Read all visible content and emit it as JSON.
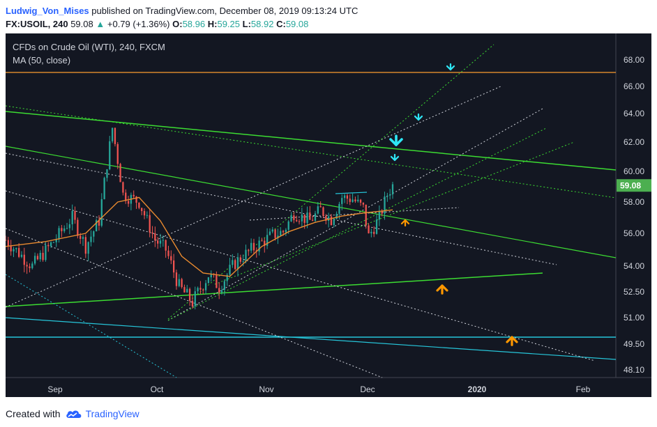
{
  "header": {
    "author": "Ludwig_Von_Mises",
    "published": "published on TradingView.com, December 08, 2019 09:13:24 UTC",
    "symbol": "FX:USOIL, 240",
    "last": "59.08",
    "change_icon": "triangle-up-icon",
    "change": "+0.79 (+1.36%)",
    "o_label": "O:",
    "o": "58.96",
    "h_label": "H:",
    "h": "59.25",
    "l_label": "L:",
    "l": "58.92",
    "c_label": "C:",
    "c": "59.08"
  },
  "legend": {
    "title": "CFDs on Crude Oil (WTI), 240, FXCM",
    "indicator": "MA (50, close)"
  },
  "footer": {
    "created": "Created with",
    "brand": "TradingView",
    "logo_icon": "tradingview-cloud-icon"
  },
  "colors": {
    "background": "#131722",
    "up": "#26a69a",
    "down": "#ef5350",
    "ma": "#e98a2f",
    "horizontal_line": "#d4852c",
    "trend_green": "#3cdc32",
    "trend_white": "#d1d4dc",
    "trend_cyan": "#26c6da",
    "arrow_cyan": "#2ee6f5",
    "arrow_orange": "#ff9800",
    "last_price_tag": "#4caf50"
  },
  "chart_data": {
    "type": "candlestick",
    "timeframe": "240",
    "x_axis_ticks": [
      "Sep",
      "Oct",
      "Nov",
      "Dec",
      "2020",
      "Feb"
    ],
    "y_axis_ticks": [
      "48.10",
      "49.50",
      "51.00",
      "52.50",
      "54.00",
      "56.00",
      "58.00",
      "60.00",
      "62.00",
      "64.00",
      "66.00",
      "68.00"
    ],
    "ylim": [
      47.5,
      69.5
    ],
    "last_price": "59.08",
    "horizontal_lines": [
      67.0,
      49.9
    ],
    "price_path": [
      [
        0,
        55.6
      ],
      [
        10,
        54.0
      ],
      [
        18,
        55.5
      ],
      [
        25,
        57.0
      ],
      [
        30,
        55.2
      ],
      [
        35,
        56.8
      ],
      [
        40,
        63.0
      ],
      [
        44,
        58.5
      ],
      [
        50,
        58.0
      ],
      [
        56,
        55.6
      ],
      [
        60,
        55.0
      ],
      [
        65,
        52.8
      ],
      [
        70,
        51.9
      ],
      [
        76,
        53.5
      ],
      [
        80,
        52.8
      ],
      [
        86,
        54.2
      ],
      [
        92,
        55.0
      ],
      [
        100,
        55.9
      ],
      [
        104,
        56.1
      ],
      [
        108,
        57.3
      ],
      [
        114,
        56.8
      ],
      [
        118,
        57.5
      ],
      [
        122,
        56.9
      ],
      [
        126,
        58.3
      ],
      [
        130,
        58.2
      ],
      [
        134,
        57.6
      ],
      [
        136,
        55.8
      ],
      [
        140,
        57.0
      ],
      [
        143,
        58.5
      ],
      [
        145,
        59.08
      ]
    ],
    "moving_average": {
      "name": "MA (50, close)",
      "points": [
        [
          0,
          55.2
        ],
        [
          15,
          55.5
        ],
        [
          30,
          56.0
        ],
        [
          42,
          58.0
        ],
        [
          50,
          58.3
        ],
        [
          58,
          56.8
        ],
        [
          66,
          54.6
        ],
        [
          74,
          53.6
        ],
        [
          84,
          53.4
        ],
        [
          96,
          55.2
        ],
        [
          106,
          56.1
        ],
        [
          116,
          56.7
        ],
        [
          126,
          57.1
        ],
        [
          134,
          57.3
        ],
        [
          145,
          57.5
        ]
      ]
    }
  }
}
